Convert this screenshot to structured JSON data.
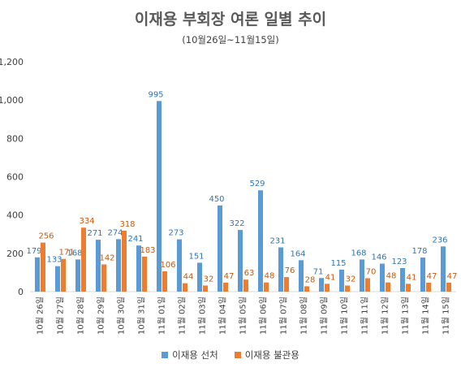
{
  "chart_data": {
    "type": "bar",
    "title": "이재용 부회장 여론 일별 추이",
    "subtitle": "(10월26일~11월15일)",
    "categories": [
      "10월 26일",
      "10월 27일",
      "10월 28일",
      "10월 29일",
      "10월 30일",
      "10월 31일",
      "11월 01일",
      "11월 02일",
      "11월 03일",
      "11월 04일",
      "11월 05일",
      "11월 06일",
      "11월 07일",
      "11월 08일",
      "11월 09일",
      "11월 10일",
      "11월 11일",
      "11월 12일",
      "11월 13일",
      "11월 14일",
      "11월 15일"
    ],
    "series": [
      {
        "name": "이재용 선처",
        "color": "#5B9BD5",
        "label_color": "#2E75B6",
        "values": [
          179,
          133,
          168,
          271,
          274,
          241,
          995,
          273,
          151,
          450,
          322,
          529,
          231,
          164,
          71,
          115,
          168,
          146,
          123,
          178,
          236
        ]
      },
      {
        "name": "이재용 불관용",
        "color": "#ED7D31",
        "label_color": "#C55A11",
        "values": [
          256,
          171,
          334,
          142,
          318,
          183,
          106,
          44,
          32,
          47,
          63,
          48,
          76,
          28,
          41,
          32,
          70,
          48,
          41,
          47,
          47
        ]
      }
    ],
    "ylim": [
      0,
      1200
    ],
    "yticks": [
      "0",
      "200",
      "400",
      "600",
      "800",
      "1,000",
      "1,200"
    ],
    "grid": false,
    "legend": "bottom",
    "axis_color": "#D9D9D9",
    "text_color": "#404040"
  }
}
